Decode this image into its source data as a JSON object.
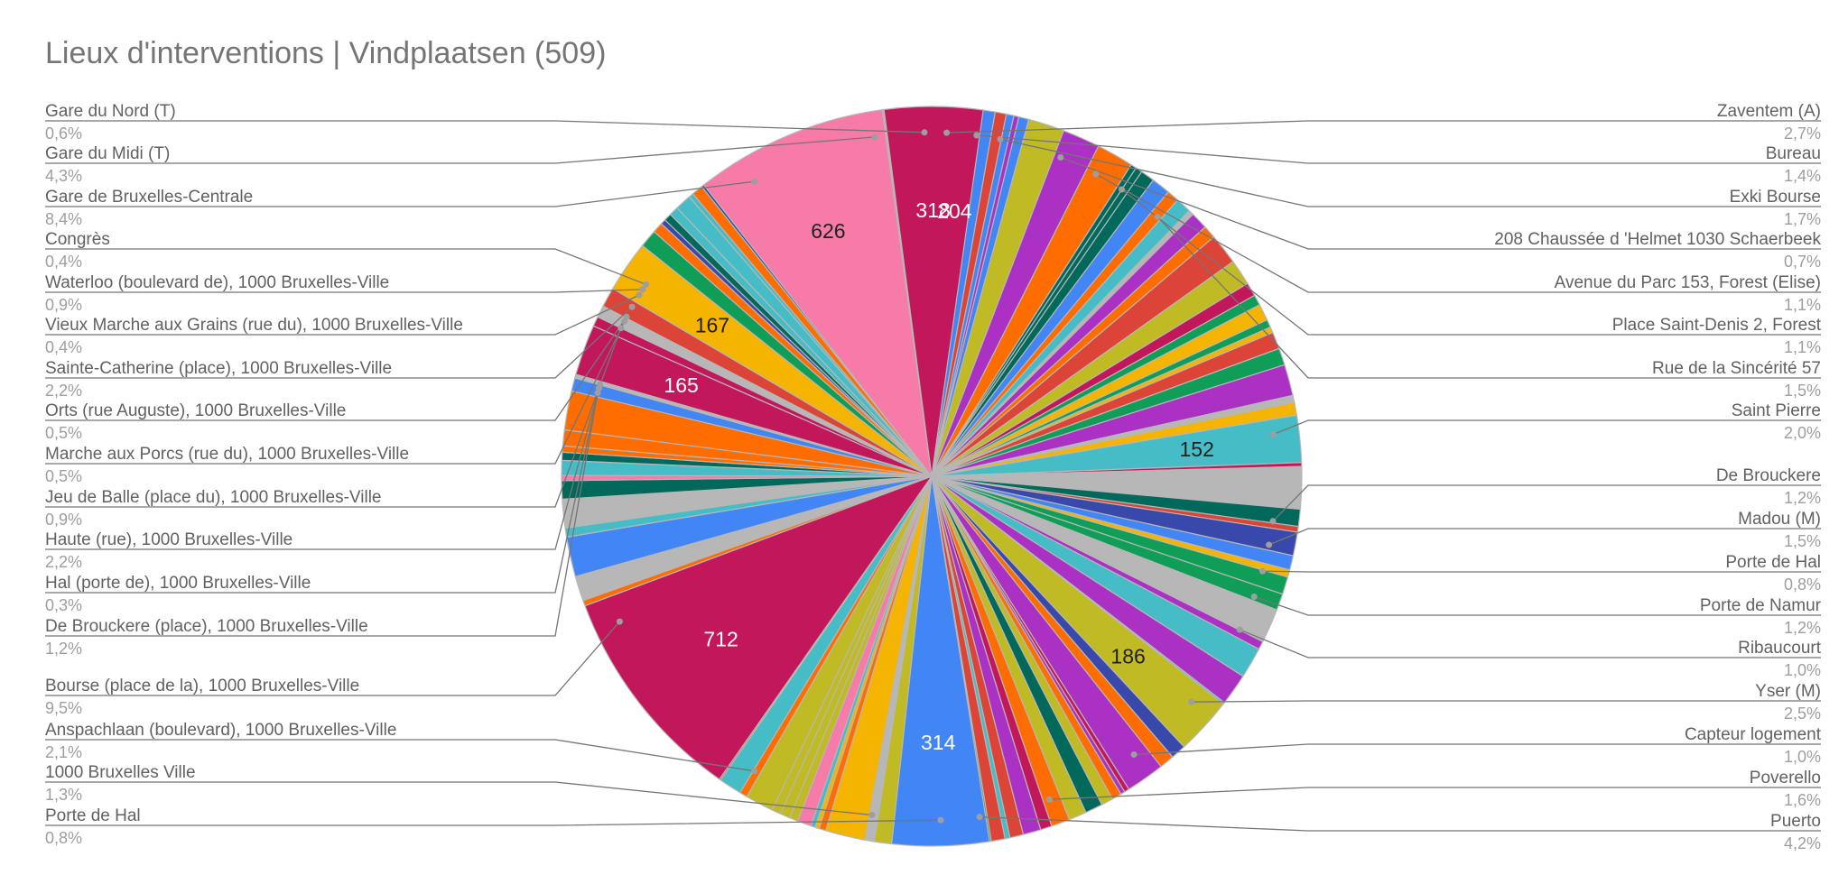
{
  "chart_data": {
    "type": "pie",
    "title": "Lieux d'interventions | Vindplaatsen (509)",
    "labels_left": [
      {
        "name": "Gare du Nord (T)",
        "pct": "0,6%"
      },
      {
        "name": "Gare du Midi (T)",
        "pct": "4,3%"
      },
      {
        "name": "Gare de Bruxelles-Centrale",
        "pct": "8,4%"
      },
      {
        "name": "Congrès",
        "pct": "0,4%"
      },
      {
        "name": "Waterloo (boulevard de), 1000 Bruxelles-Ville",
        "pct": "0,9%"
      },
      {
        "name": "Vieux Marche aux Grains (rue du), 1000 Bruxelles-Ville",
        "pct": "0,4%"
      },
      {
        "name": "Sainte-Catherine (place), 1000 Bruxelles-Ville",
        "pct": "2,2%"
      },
      {
        "name": "Orts (rue Auguste), 1000 Bruxelles-Ville",
        "pct": "0,5%"
      },
      {
        "name": "Marche aux Porcs (rue du), 1000 Bruxelles-Ville",
        "pct": "0,5%"
      },
      {
        "name": "Jeu de Balle (place du), 1000 Bruxelles-Ville",
        "pct": "0,9%"
      },
      {
        "name": "Haute (rue), 1000 Bruxelles-Ville",
        "pct": "2,2%"
      },
      {
        "name": "Hal (porte de), 1000 Bruxelles-Ville",
        "pct": "0,3%"
      },
      {
        "name": "De Brouckere (place), 1000 Bruxelles-Ville",
        "pct": "1,2%"
      },
      {
        "name": "Bourse (place de la), 1000 Bruxelles-Ville",
        "pct": "9,5%"
      },
      {
        "name": "Anspachlaan (boulevard), 1000 Bruxelles-Ville",
        "pct": "2,1%"
      },
      {
        "name": "1000 Bruxelles Ville",
        "pct": "1,3%"
      },
      {
        "name": "Porte de Hal",
        "pct": "0,8%"
      }
    ],
    "labels_right": [
      {
        "name": "Zaventem (A)",
        "pct": "2,7%"
      },
      {
        "name": "Bureau",
        "pct": "1,4%"
      },
      {
        "name": "Exki Bourse",
        "pct": "1,7%"
      },
      {
        "name": "208 Chaussée d 'Helmet 1030 Schaerbeek",
        "pct": "0,7%"
      },
      {
        "name": "Avenue du Parc 153, Forest (Elise)",
        "pct": "1,1%"
      },
      {
        "name": "Place Saint-Denis 2, Forest",
        "pct": "1,1%"
      },
      {
        "name": "Rue de la Sincérité 57",
        "pct": "1,5%"
      },
      {
        "name": "Saint Pierre",
        "pct": "2,0%"
      },
      {
        "name": "De Brouckere",
        "pct": "1,2%"
      },
      {
        "name": "Madou (M)",
        "pct": "1,5%"
      },
      {
        "name": "Porte de Hal",
        "pct": "0,8%"
      },
      {
        "name": "Porte de Namur",
        "pct": "1,2%"
      },
      {
        "name": "Ribaucourt",
        "pct": "1,0%"
      },
      {
        "name": "Yser (M)",
        "pct": "2,5%"
      },
      {
        "name": "Capteur logement",
        "pct": "1,0%"
      },
      {
        "name": "Poverello",
        "pct": "1,6%"
      },
      {
        "name": "Puerto",
        "pct": "4,2%"
      }
    ],
    "slice_values": [
      "204",
      "152",
      "186",
      "314",
      "712",
      "165",
      "167",
      "626",
      "318"
    ],
    "colors": {
      "blue": "#4285f4",
      "magenta": "#c2185b",
      "pink": "#f77ba8",
      "yellow": "#f4b400",
      "olive": "#c0ba24",
      "teal": "#46bdc6",
      "darkgreen": "#00695c",
      "orange": "#ff6d01",
      "red": "#db4437",
      "purple": "#ab30c4",
      "green": "#0f9d58",
      "navy": "#3949ab",
      "gray": "#b7b7b7"
    }
  }
}
